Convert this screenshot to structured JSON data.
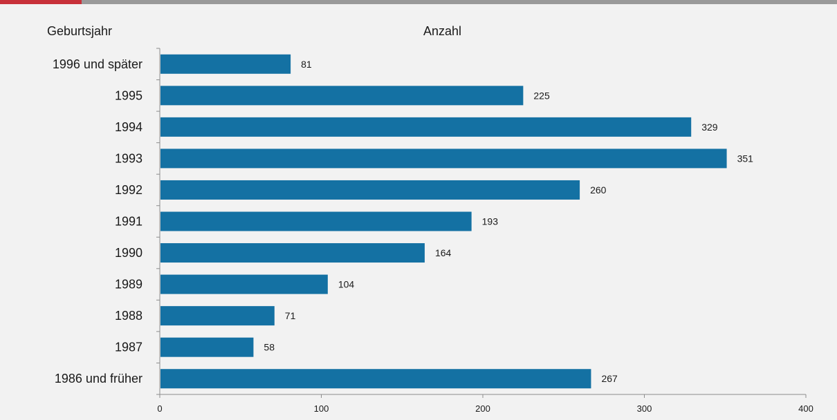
{
  "theme": {
    "bar_color": "#1471a3",
    "accent_color": "#c8313a",
    "rule_color": "#9a9a9a",
    "background": "#f2f2f2"
  },
  "chart_data": {
    "type": "bar",
    "orientation": "horizontal",
    "ylabel": "Geburtsjahr",
    "xlabel": "Anzahl",
    "categories": [
      "1996 und später",
      "1995",
      "1994",
      "1993",
      "1992",
      "1991",
      "1990",
      "1989",
      "1988",
      "1987",
      "1986 und früher"
    ],
    "values": [
      81,
      225,
      329,
      351,
      260,
      193,
      164,
      104,
      71,
      58,
      267
    ],
    "xlim": [
      0,
      400
    ],
    "xticks": [
      0,
      100,
      200,
      300,
      400
    ],
    "data_labels": true,
    "grid": false
  }
}
